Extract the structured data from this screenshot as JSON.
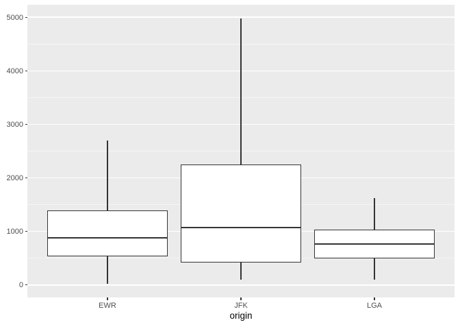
{
  "chart_data": {
    "type": "boxplot",
    "title": "",
    "xlabel": "origin",
    "ylabel": "",
    "categories": [
      "EWR",
      "JFK",
      "LGA"
    ],
    "y_ticks": [
      0,
      1000,
      2000,
      3000,
      4000,
      5000
    ],
    "y_tick_labels": [
      "0",
      "1000",
      "2000",
      "3000",
      "4000",
      "5000"
    ],
    "y_minor_ticks": [
      500,
      1500,
      2500,
      3500,
      4500
    ],
    "ylim_display": [
      -233,
      5233
    ],
    "grid": true,
    "legend": "none",
    "series": [
      {
        "category": "EWR",
        "whisker_low": 17,
        "q1": 535,
        "median": 880,
        "q3": 1390,
        "whisker_high": 2700
      },
      {
        "category": "JFK",
        "whisker_low": 94,
        "q1": 420,
        "median": 1070,
        "q3": 2250,
        "whisker_high": 4980
      },
      {
        "category": "LGA",
        "whisker_low": 96,
        "q1": 500,
        "median": 765,
        "q3": 1035,
        "whisker_high": 1620
      }
    ],
    "colors": {
      "panel_background": "#EBEBEB",
      "grid_major": "#FFFFFF",
      "grid_minor": "#F5F5F5",
      "box_outline": "#333333",
      "box_fill": "#FFFFFF",
      "axis_text": "#4D4D4D",
      "axis_title": "#000000",
      "tick_mark": "#333333"
    }
  }
}
